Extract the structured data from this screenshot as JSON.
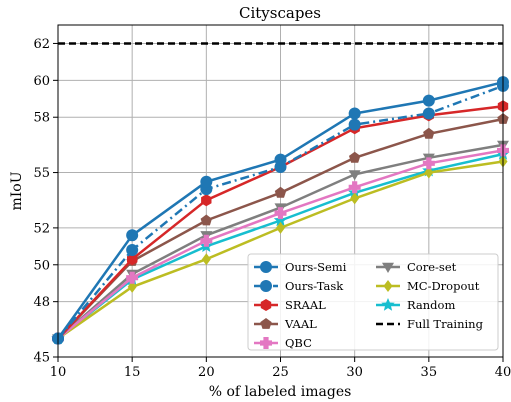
{
  "chart_data": {
    "type": "line",
    "title": "Cityscapes",
    "xlabel": "% of labeled images",
    "ylabel": "mIoU",
    "x": [
      10,
      15,
      20,
      25,
      30,
      35,
      40
    ],
    "xlim": [
      10,
      40
    ],
    "ylim": [
      45,
      63
    ],
    "x_ticks": [
      "10",
      "15",
      "20",
      "25",
      "30",
      "35",
      "40"
    ],
    "y_ticks": [
      {
        "value": 45,
        "label": "45"
      },
      {
        "value": 48,
        "label": "48"
      },
      {
        "value": 50,
        "label": "50"
      },
      {
        "value": 52,
        "label": "52"
      },
      {
        "value": 55,
        "label": "55"
      },
      {
        "value": 58,
        "label": "58"
      },
      {
        "value": 60,
        "label": "60"
      },
      {
        "value": 62,
        "label": "62"
      }
    ],
    "grid": true,
    "legend_position": "lower-right",
    "series": [
      {
        "name": "Ours-Semi",
        "values": [
          46.0,
          51.6,
          54.5,
          55.7,
          58.2,
          58.9,
          59.9
        ],
        "color": "#1f77b4",
        "dash": "solid",
        "marker": "circle"
      },
      {
        "name": "Ours-Task",
        "values": [
          46.0,
          50.8,
          54.1,
          55.3,
          57.6,
          58.2,
          59.7
        ],
        "color": "#1f77b4",
        "dash": "dashdot",
        "marker": "circle"
      },
      {
        "name": "SRAAL",
        "values": [
          46.0,
          50.3,
          53.5,
          55.3,
          57.4,
          58.1,
          58.6
        ],
        "color": "#d62728",
        "dash": "solid",
        "marker": "hexagon"
      },
      {
        "name": "VAAL",
        "values": [
          46.0,
          50.2,
          52.4,
          53.9,
          55.8,
          57.1,
          57.9
        ],
        "color": "#8c564b",
        "dash": "solid",
        "marker": "pentagon"
      },
      {
        "name": "QBC",
        "values": [
          46.0,
          49.3,
          51.3,
          52.8,
          54.2,
          55.5,
          56.2
        ],
        "color": "#e377c2",
        "dash": "solid",
        "marker": "plus"
      },
      {
        "name": "Core-set",
        "values": [
          46.0,
          49.5,
          51.6,
          53.1,
          54.9,
          55.8,
          56.5
        ],
        "color": "#7f7f7f",
        "dash": "solid",
        "marker": "triangle-down"
      },
      {
        "name": "MC-Dropout",
        "values": [
          46.0,
          48.8,
          50.3,
          52.0,
          53.6,
          55.0,
          55.6
        ],
        "color": "#bcbd22",
        "dash": "solid",
        "marker": "diamond"
      },
      {
        "name": "Random",
        "values": [
          46.0,
          49.2,
          51.0,
          52.4,
          53.9,
          55.1,
          56.0
        ],
        "color": "#17becf",
        "dash": "solid",
        "marker": "star"
      }
    ],
    "reference_line": {
      "name": "Full Training",
      "value": 62,
      "color": "#000000",
      "dash": "dashed"
    }
  }
}
